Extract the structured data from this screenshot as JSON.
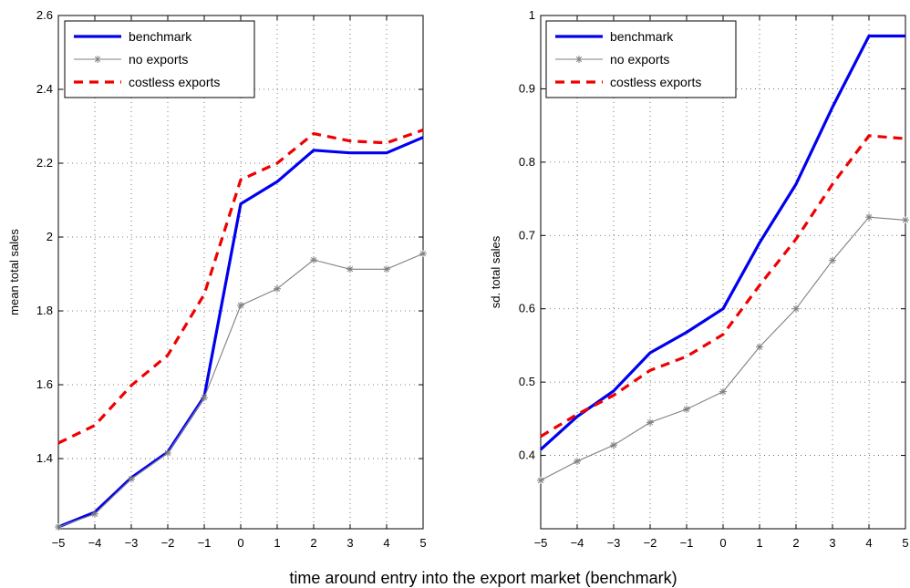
{
  "figure": {
    "xlabel": "time around entry into the export market (benchmark)"
  },
  "colors": {
    "benchmark": "#0000ee",
    "no_exports": "#7f7f7f",
    "costless_exports": "#ee0000",
    "grid": "#555555"
  },
  "chart_data": [
    {
      "type": "line",
      "title": "",
      "xlabel": "",
      "ylabel": "mean total sales",
      "xlim": [
        -5,
        5
      ],
      "ylim": [
        1.21,
        2.6
      ],
      "yticks": [
        1.4,
        1.6,
        1.8,
        2,
        2.2,
        2.4,
        2.6
      ],
      "yticklabels": [
        "1.4",
        "1.6",
        "1.8",
        "2",
        "2.2",
        "2.4",
        "2.6"
      ],
      "x": [
        -5,
        -4,
        -3,
        -2,
        -1,
        0,
        1,
        2,
        3,
        4,
        5
      ],
      "xticklabels": [
        "−5",
        "−4",
        "−3",
        "−2",
        "−1",
        "0",
        "1",
        "2",
        "3",
        "4",
        "5"
      ],
      "grid": true,
      "legend": "top-left",
      "series": [
        {
          "name": "benchmark",
          "style": "solid-thick",
          "marker": "none",
          "values": [
            1.215,
            1.255,
            1.348,
            1.418,
            1.568,
            2.09,
            2.15,
            2.235,
            2.228,
            2.228,
            2.27
          ]
        },
        {
          "name": "no exports",
          "style": "solid-thin",
          "marker": "star",
          "values": [
            1.215,
            1.25,
            1.345,
            1.415,
            1.565,
            1.815,
            1.86,
            1.938,
            1.913,
            1.913,
            1.955
          ]
        },
        {
          "name": "costless exports",
          "style": "dashed",
          "marker": "none",
          "values": [
            1.442,
            1.49,
            1.598,
            1.68,
            1.845,
            2.155,
            2.2,
            2.28,
            2.26,
            2.255,
            2.29
          ]
        }
      ]
    },
    {
      "type": "line",
      "title": "",
      "xlabel": "",
      "ylabel": "sd. total sales",
      "xlim": [
        -5,
        5
      ],
      "ylim": [
        0.3,
        1.0
      ],
      "yticks": [
        0.4,
        0.5,
        0.6,
        0.7,
        0.8,
        0.9,
        1.0
      ],
      "yticklabels": [
        "0.4",
        "0.5",
        "0.6",
        "0.7",
        "0.8",
        "0.9",
        "1"
      ],
      "x": [
        -5,
        -4,
        -3,
        -2,
        -1,
        0,
        1,
        2,
        3,
        4,
        5
      ],
      "xticklabels": [
        "−5",
        "−4",
        "−3",
        "−2",
        "−1",
        "0",
        "1",
        "2",
        "3",
        "4",
        "5"
      ],
      "grid": true,
      "legend": "top-left",
      "series": [
        {
          "name": "benchmark",
          "style": "solid-thick",
          "marker": "none",
          "values": [
            0.408,
            0.453,
            0.488,
            0.54,
            0.568,
            0.6,
            0.69,
            0.77,
            0.875,
            0.972,
            0.972
          ]
        },
        {
          "name": "no exports",
          "style": "solid-thin",
          "marker": "star",
          "values": [
            0.366,
            0.392,
            0.414,
            0.445,
            0.463,
            0.487,
            0.548,
            0.6,
            0.666,
            0.725,
            0.721
          ]
        },
        {
          "name": "costless exports",
          "style": "dashed",
          "marker": "none",
          "values": [
            0.426,
            0.456,
            0.482,
            0.516,
            0.535,
            0.565,
            0.632,
            0.695,
            0.77,
            0.836,
            0.832
          ]
        }
      ]
    }
  ]
}
